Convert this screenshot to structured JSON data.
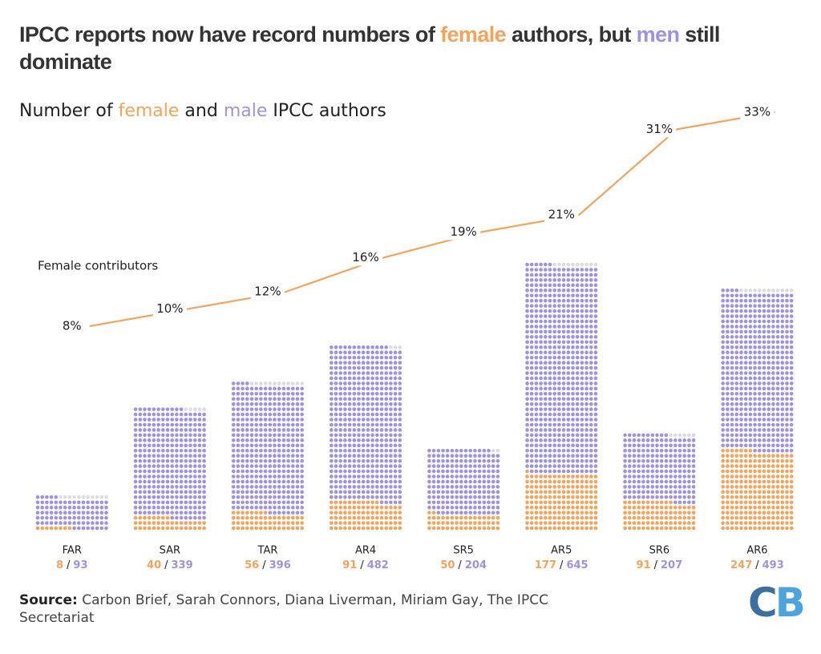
{
  "chart_data": {
    "type": "waffle-bar",
    "title": [
      "IPCC reports now have record numbers of ",
      "female",
      " authors, but ",
      "men",
      " still dominate"
    ],
    "subtitle": [
      "Number of ",
      "female",
      " and ",
      "male",
      " IPCC authors"
    ],
    "categories": [
      "FAR",
      "SAR",
      "TAR",
      "AR4",
      "SR5",
      "AR5",
      "SR6",
      "AR6"
    ],
    "series": [
      {
        "name": "female",
        "color": "#f2a35e",
        "values": [
          8,
          40,
          56,
          91,
          50,
          177,
          91,
          247
        ]
      },
      {
        "name": "male",
        "color": "#9d93dc",
        "values": [
          93,
          339,
          396,
          482,
          204,
          645,
          207,
          493
        ]
      }
    ],
    "line": {
      "name": "Female contributors",
      "color": "#f2a35e",
      "values": [
        8,
        10,
        12,
        16,
        19,
        21,
        31,
        33
      ],
      "value_labels": [
        "8%",
        "10%",
        "12%",
        "16%",
        "19%",
        "21%",
        "31%",
        "33%"
      ]
    },
    "separator": "/",
    "source_label": "Source:",
    "source": "Carbon Brief, Sarah Connors, Diana Liverman, Miriam Gay, The IPCC Secretariat",
    "logo": "CB"
  }
}
